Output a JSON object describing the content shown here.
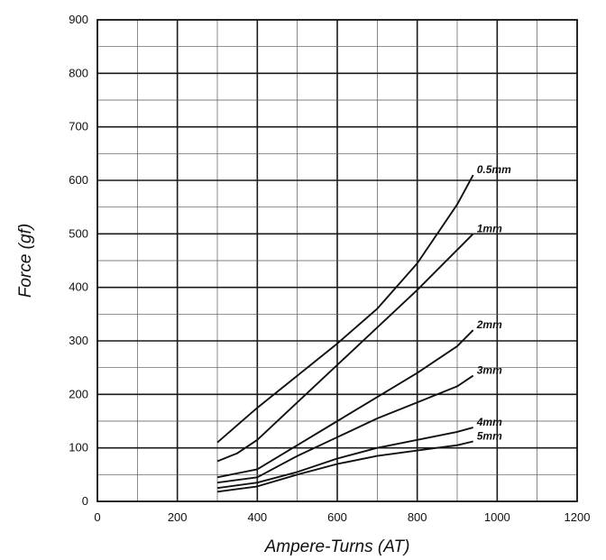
{
  "chart_data": {
    "type": "line",
    "title": "",
    "xlabel": "Ampere-Turns (AT)",
    "ylabel": "Force (gf)",
    "xlim": [
      0,
      1200
    ],
    "ylim": [
      0,
      900
    ],
    "x_ticks": [
      "0",
      "200",
      "400",
      "600",
      "800",
      "1000",
      "1200"
    ],
    "y_ticks": [
      "0",
      "100",
      "200",
      "300",
      "400",
      "500",
      "600",
      "700",
      "800",
      "900"
    ],
    "grid": true,
    "legend": "none",
    "series": [
      {
        "name": "0.5mm",
        "x": [
          300,
          400,
          500,
          600,
          700,
          800,
          900,
          940
        ],
        "y": [
          110,
          175,
          235,
          295,
          360,
          445,
          555,
          610
        ]
      },
      {
        "name": "1mm",
        "x": [
          300,
          350,
          400,
          500,
          600,
          700,
          800,
          900,
          940
        ],
        "y": [
          75,
          90,
          115,
          185,
          255,
          325,
          395,
          470,
          500
        ]
      },
      {
        "name": "2mm",
        "x": [
          300,
          400,
          500,
          600,
          700,
          800,
          900,
          940
        ],
        "y": [
          45,
          60,
          105,
          150,
          195,
          240,
          290,
          320
        ]
      },
      {
        "name": "3mm",
        "x": [
          300,
          400,
          500,
          600,
          700,
          800,
          900,
          940
        ],
        "y": [
          35,
          45,
          85,
          120,
          155,
          185,
          215,
          235
        ]
      },
      {
        "name": "4mm",
        "x": [
          300,
          400,
          500,
          600,
          700,
          800,
          900,
          940
        ],
        "y": [
          25,
          35,
          55,
          80,
          100,
          115,
          130,
          138
        ]
      },
      {
        "name": "5mm",
        "x": [
          300,
          400,
          500,
          600,
          700,
          800,
          900,
          940
        ],
        "y": [
          18,
          28,
          50,
          70,
          85,
          95,
          105,
          112
        ]
      }
    ]
  }
}
